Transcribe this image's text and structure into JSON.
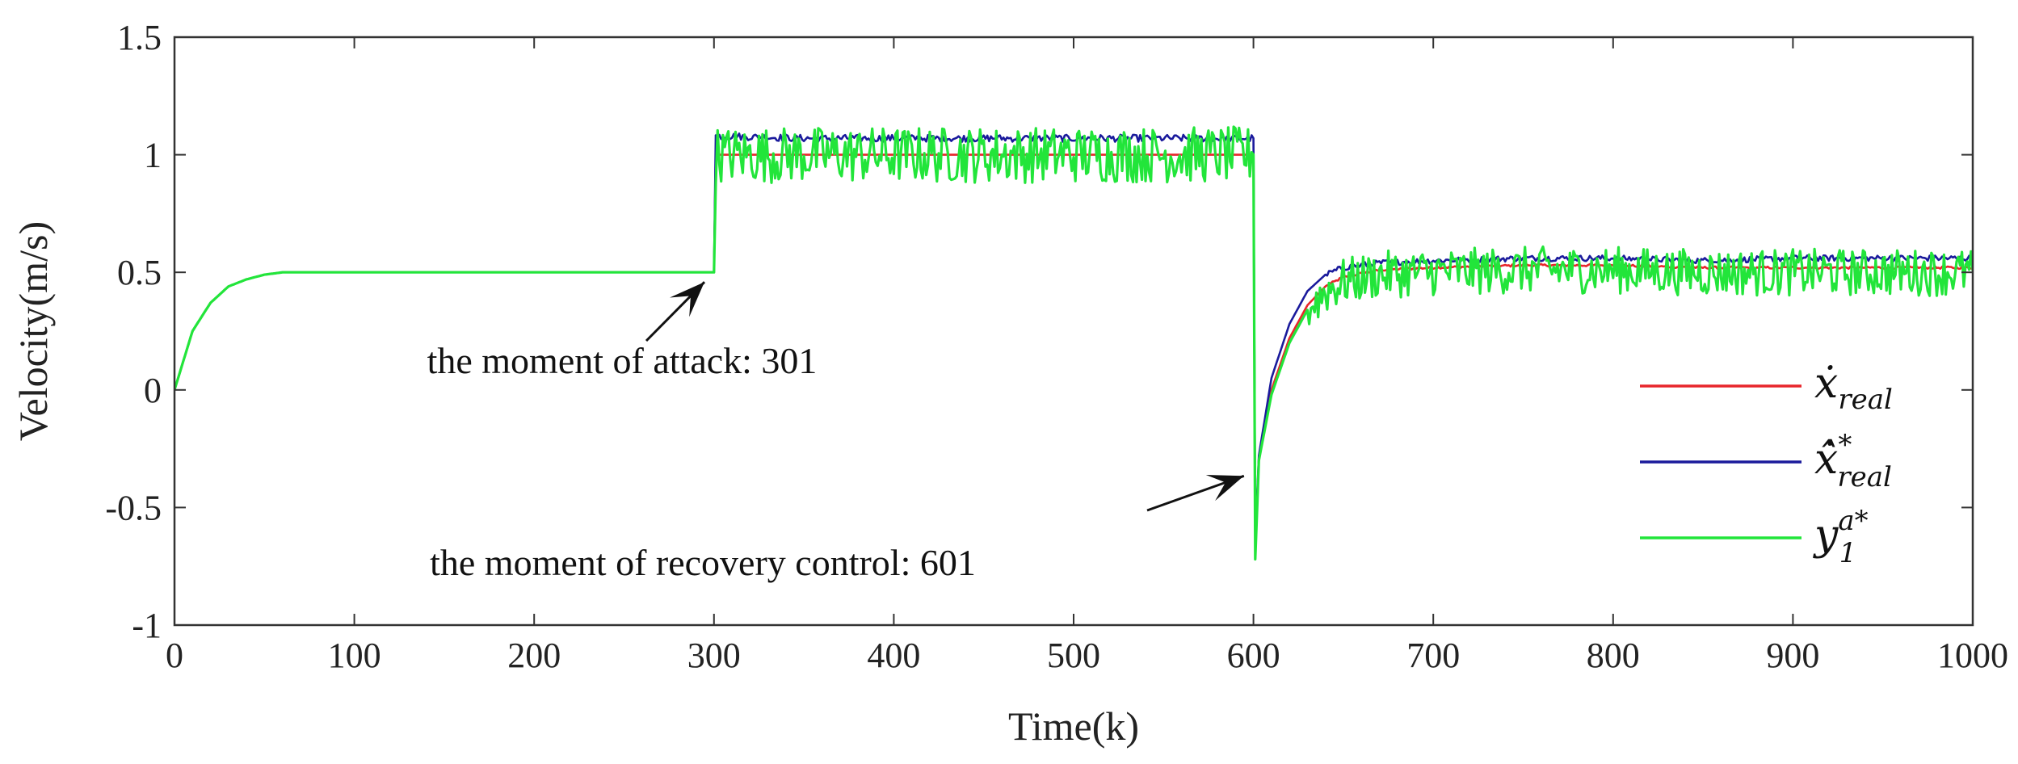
{
  "chart_data": {
    "type": "line",
    "xlabel": "Time(k)",
    "ylabel": "Velocity(m/s)",
    "xlim": [
      0,
      1000
    ],
    "ylim": [
      -1,
      1.5
    ],
    "xticks": [
      0,
      100,
      200,
      300,
      400,
      500,
      600,
      700,
      800,
      900,
      1000
    ],
    "yticks": [
      -1,
      -0.5,
      0,
      0.5,
      1,
      1.5
    ],
    "ytick_labels": [
      "-1",
      "-0.5",
      "0",
      "0.5",
      "1",
      "1.5"
    ],
    "grid": false,
    "legend_position": "lower-right",
    "series": [
      {
        "name": "ẋ_real",
        "color": "#e8262b",
        "x": [
          0,
          10,
          20,
          30,
          40,
          50,
          60,
          80,
          100,
          150,
          200,
          250,
          299,
          301,
          350,
          400,
          450,
          500,
          550,
          599,
          601,
          603,
          610,
          620,
          630,
          640,
          650,
          670,
          700,
          750,
          800,
          850,
          900,
          950,
          1000
        ],
        "values": [
          0,
          0.25,
          0.37,
          0.44,
          0.47,
          0.49,
          0.5,
          0.5,
          0.5,
          0.5,
          0.5,
          0.5,
          0.5,
          1.0,
          1.0,
          1.0,
          1.0,
          1.0,
          1.0,
          1.0,
          -0.62,
          -0.3,
          0.0,
          0.22,
          0.36,
          0.44,
          0.48,
          0.51,
          0.52,
          0.53,
          0.53,
          0.52,
          0.52,
          0.52,
          0.52
        ]
      },
      {
        "name": "ẋ*_real",
        "color": "#1a1a9c",
        "x": [
          0,
          10,
          20,
          30,
          40,
          50,
          60,
          80,
          100,
          150,
          200,
          250,
          299,
          301,
          350,
          400,
          450,
          500,
          550,
          599,
          601,
          603,
          610,
          620,
          630,
          640,
          650,
          670,
          700,
          750,
          800,
          850,
          900,
          950,
          1000
        ],
        "values": [
          0,
          0.25,
          0.37,
          0.44,
          0.47,
          0.49,
          0.5,
          0.5,
          0.5,
          0.5,
          0.5,
          0.5,
          0.5,
          1.08,
          1.07,
          1.07,
          1.07,
          1.07,
          1.07,
          1.07,
          -0.62,
          -0.28,
          0.05,
          0.28,
          0.42,
          0.49,
          0.52,
          0.54,
          0.55,
          0.56,
          0.56,
          0.55,
          0.56,
          0.56,
          0.56
        ]
      },
      {
        "name": "y_1^{a*}",
        "color": "#22e53a",
        "x": [
          0,
          10,
          20,
          30,
          40,
          50,
          60,
          80,
          100,
          150,
          200,
          250,
          299,
          301,
          350,
          400,
          450,
          500,
          550,
          599,
          601,
          603,
          610,
          620,
          630,
          640,
          650,
          670,
          700,
          750,
          800,
          850,
          900,
          950,
          1000
        ],
        "values": [
          0,
          0.25,
          0.37,
          0.44,
          0.47,
          0.49,
          0.5,
          0.5,
          0.5,
          0.5,
          0.5,
          0.5,
          0.5,
          1.0,
          1.0,
          1.0,
          1.0,
          1.0,
          1.0,
          1.0,
          -0.72,
          -0.3,
          -0.02,
          0.2,
          0.34,
          0.42,
          0.46,
          0.49,
          0.5,
          0.51,
          0.51,
          0.5,
          0.5,
          0.5,
          0.5
        ],
        "noise_amplitude_attack": 0.12,
        "noise_amplitude_recovery": 0.1
      }
    ],
    "annotations": [
      {
        "text": "the moment of attack: 301",
        "arrow_to": [
          301,
          0.5
        ]
      },
      {
        "text": "the moment of recovery control: 601",
        "arrow_to": [
          601,
          -0.4
        ]
      }
    ]
  },
  "legend": {
    "items": [
      {
        "base": "ẋ",
        "sup": "",
        "sub": "real",
        "color": "#e8262b"
      },
      {
        "base": "ẋ̂",
        "sup": "*",
        "sub": "real",
        "color": "#1a1a9c"
      },
      {
        "base": "y",
        "sup": "a*",
        "sub": "1",
        "color": "#22e53a"
      }
    ]
  }
}
